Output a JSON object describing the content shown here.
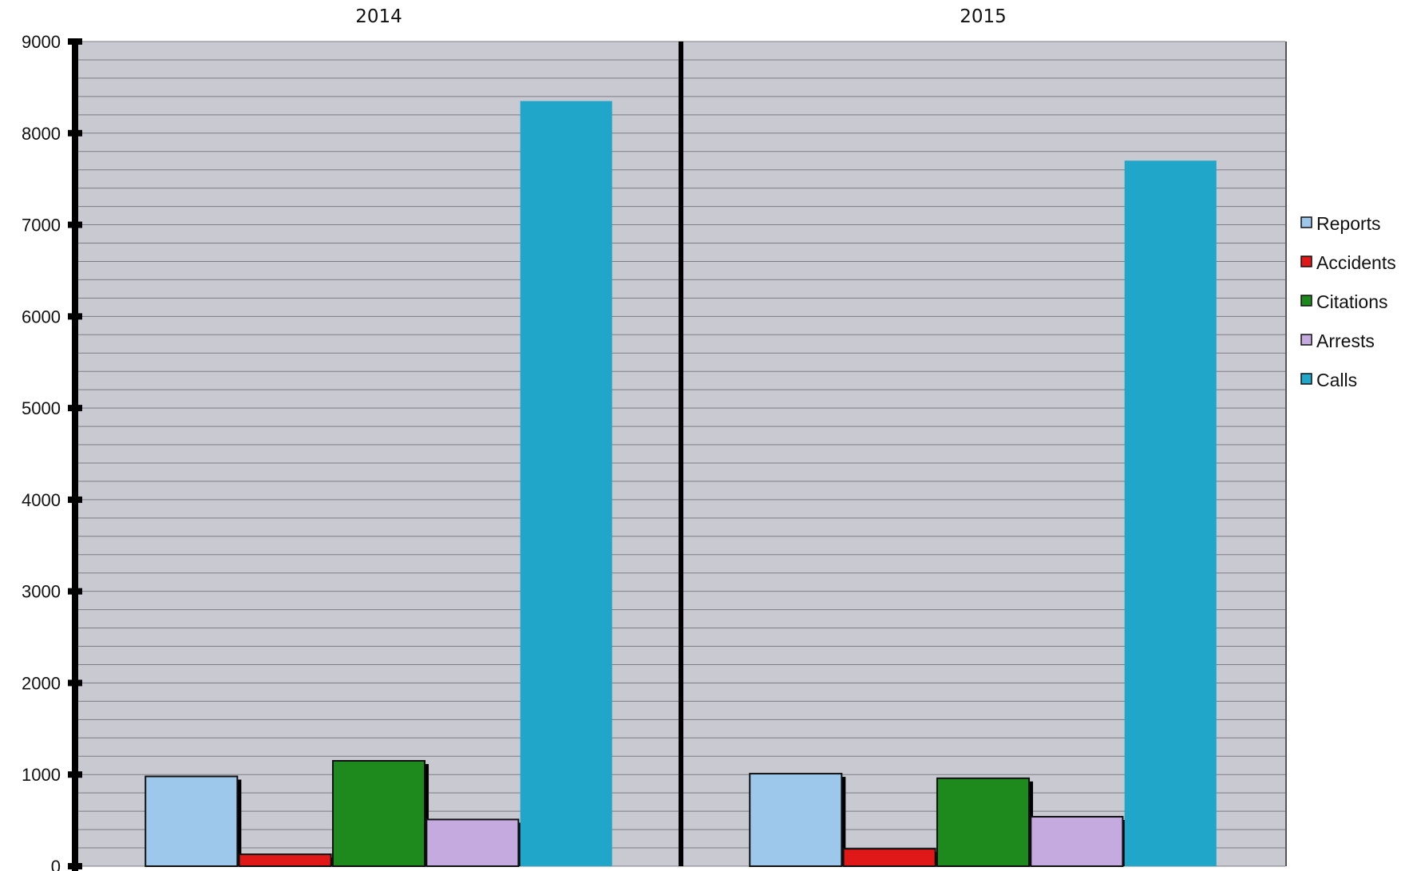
{
  "chart_data": {
    "type": "bar",
    "title": "",
    "xlabel": "",
    "ylabel": "",
    "categories": [
      "2014",
      "2015"
    ],
    "ylim": [
      0,
      9000
    ],
    "yticks": [
      0,
      1000,
      2000,
      3000,
      4000,
      5000,
      6000,
      7000,
      8000,
      9000
    ],
    "grid": true,
    "legend_position": "right",
    "background_color": "#c9c9d2",
    "series": [
      {
        "name": "Reports",
        "color": "#9dc8ec",
        "values": [
          980,
          1010
        ]
      },
      {
        "name": "Accidents",
        "color": "#e01818",
        "values": [
          130,
          190
        ]
      },
      {
        "name": "Citations",
        "color": "#1e8a1e",
        "values": [
          1150,
          960
        ]
      },
      {
        "name": "Arrests",
        "color": "#c5aae0",
        "values": [
          510,
          540
        ]
      },
      {
        "name": "Calls",
        "color": "#1fa6c9",
        "values": [
          8350,
          7700
        ]
      }
    ]
  }
}
